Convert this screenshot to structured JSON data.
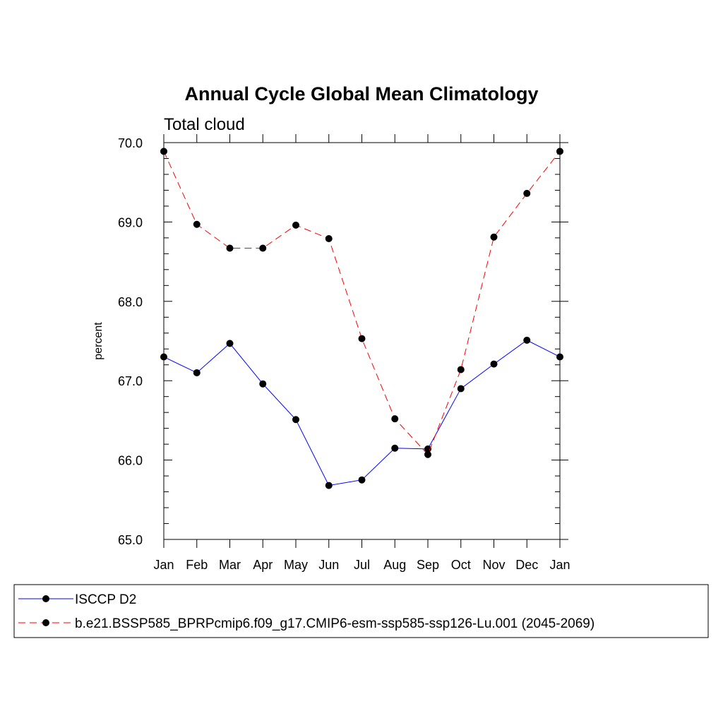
{
  "chart_data": {
    "type": "line",
    "title": "Annual Cycle Global Mean Climatology",
    "subtitle": "Total cloud",
    "xlabel": "",
    "ylabel": "percent",
    "categories": [
      "Jan",
      "Feb",
      "Mar",
      "Apr",
      "May",
      "Jun",
      "Jul",
      "Aug",
      "Sep",
      "Oct",
      "Nov",
      "Dec",
      "Jan"
    ],
    "ylim": [
      65.0,
      70.0
    ],
    "yticks": [
      "65.0",
      "66.0",
      "67.0",
      "68.0",
      "69.0",
      "70.0"
    ],
    "grid": false,
    "legend_position": "bottom",
    "series": [
      {
        "name": "ISCCP D2",
        "color": "#0000ff",
        "line_style": "solid",
        "marker": "filled-circle",
        "values": [
          67.3,
          67.1,
          67.47,
          66.96,
          66.51,
          65.68,
          65.75,
          66.15,
          66.14,
          66.9,
          67.21,
          67.51,
          67.3
        ]
      },
      {
        "name": "b.e21.BSSP585_BPRPcmip6.f09_g17.CMIP6-esm-ssp585-ssp126-Lu.001 (2045-2069)",
        "color": "#ff0000",
        "line_style": "dashed",
        "marker": "filled-circle",
        "values": [
          69.89,
          68.97,
          68.67,
          68.67,
          68.96,
          68.79,
          67.53,
          66.52,
          66.07,
          67.14,
          68.81,
          69.36,
          69.89
        ]
      }
    ]
  }
}
